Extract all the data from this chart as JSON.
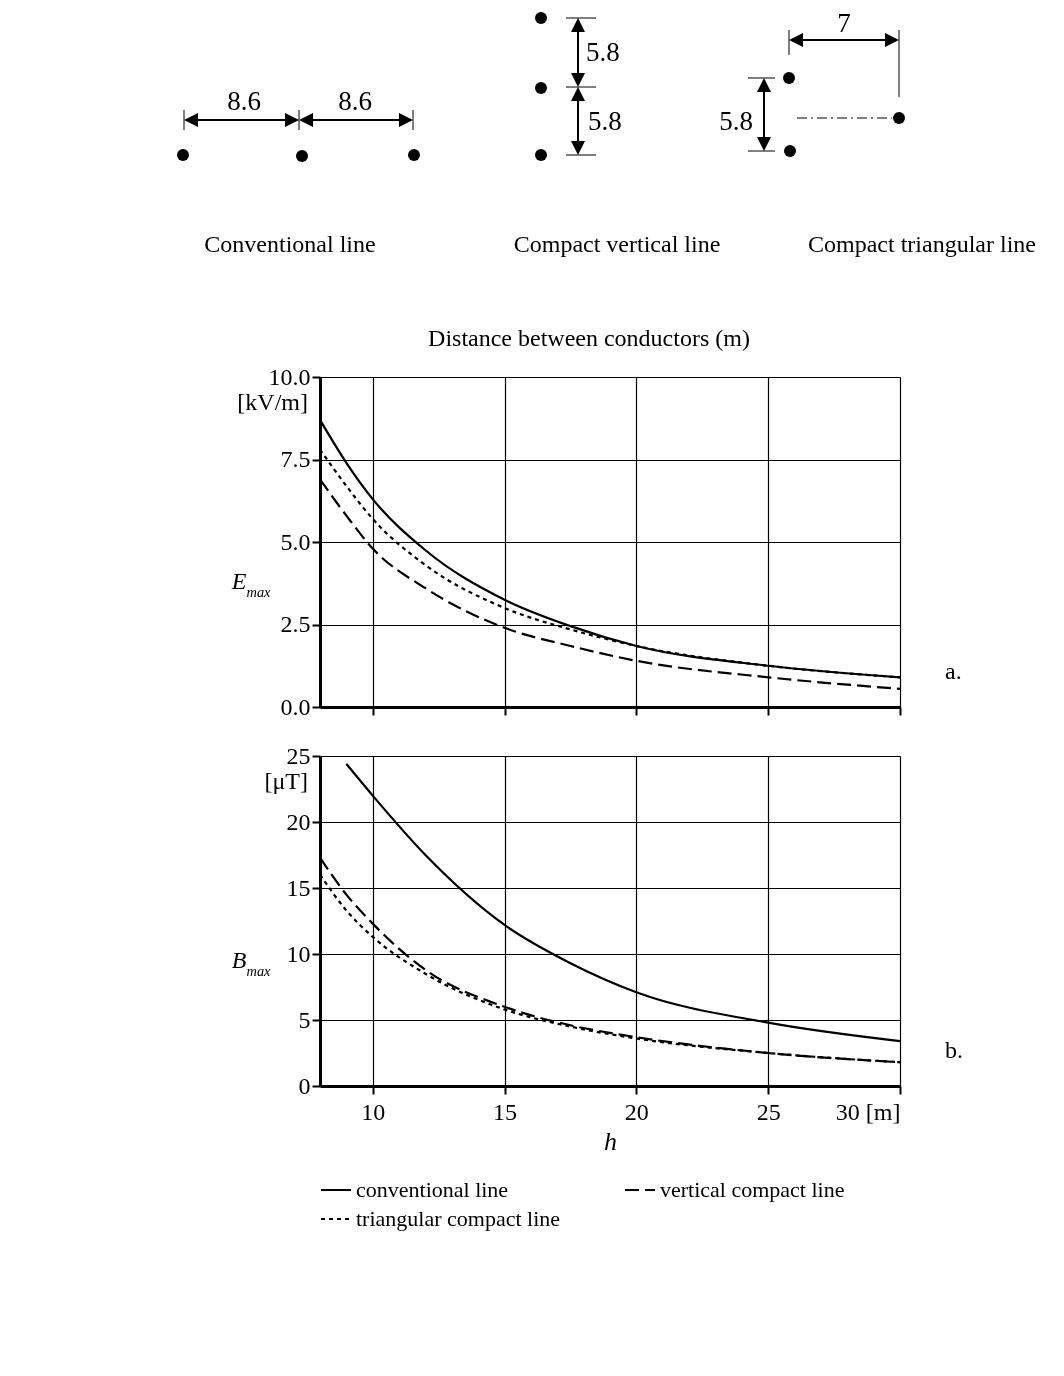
{
  "chart_data": [
    {
      "type": "other",
      "title": "Distance between conductors (m)",
      "annotations": [
        "8.6",
        "8.6",
        "5.8",
        "5.8",
        "7",
        "5.8",
        "Conventional line",
        "Compact vertical line",
        "Compact triangular line"
      ]
    },
    {
      "type": "line",
      "ylabel": "E$_{max}$",
      "x": [
        8,
        9,
        10,
        12,
        15,
        17.5,
        20,
        25,
        30
      ],
      "xlim": [
        8,
        30
      ],
      "xticks": [
        10,
        15,
        20,
        25,
        30
      ],
      "ylim": [
        0,
        10
      ],
      "yticks": [
        {
          "value": 0,
          "label": "0.0"
        },
        {
          "value": 2.5,
          "label": "2.5"
        },
        {
          "value": 5,
          "label": "5.0"
        },
        {
          "value": 7.5,
          "label": "7.5"
        },
        {
          "value": 10,
          "label": "10.0"
        }
      ],
      "tick_labels": "y",
      "grid": true,
      "annotations": [
        "[kV/m]",
        "a."
      ],
      "series": [
        {
          "color": "#000000",
          "line_style": "solid",
          "values": [
            8.7,
            7.4,
            6.3,
            4.75,
            3.25,
            2.45,
            1.85,
            1.25,
            0.9
          ]
        },
        {
          "color": "#000000",
          "line_style": "dashed",
          "values": [
            6.9,
            5.8,
            4.8,
            3.6,
            2.4,
            1.85,
            1.4,
            0.9,
            0.55
          ]
        },
        {
          "color": "#000000",
          "line_style": "dotted",
          "values": [
            7.8,
            6.7,
            5.7,
            4.3,
            3.0,
            2.35,
            1.85,
            1.25,
            0.9
          ]
        }
      ]
    },
    {
      "type": "line",
      "ylabel": "B$_{max}$",
      "xlabel": "h",
      "x": [
        8,
        9,
        10,
        12,
        15,
        17.5,
        20,
        25,
        30
      ],
      "xlim": [
        8,
        30
      ],
      "xticks": [
        10,
        15,
        20,
        25,
        {
          "value": 30,
          "label": "30 [m]"
        }
      ],
      "ylim": [
        0,
        25
      ],
      "yticks": [
        0,
        5,
        10,
        15,
        20,
        25
      ],
      "grid": true,
      "legend": "bottom",
      "annotations": [
        "[μT]",
        "b."
      ],
      "series": [
        {
          "name": "conventional line",
          "color": "#000000",
          "line_style": "solid",
          "values": [
            null,
            24.4,
            22,
            17.5,
            12.2,
            9.3,
            7.1,
            4.8,
            3.4
          ]
        },
        {
          "name": "vertical compact line",
          "color": "#000000",
          "line_style": "dashed",
          "values": [
            17.3,
            14.5,
            12.3,
            8.8,
            6.0,
            4.6,
            3.7,
            2.5,
            1.8
          ]
        },
        {
          "name": "triangular compact line",
          "color": "#000000",
          "line_style": "dotted",
          "values": [
            16,
            13.3,
            11.3,
            8.5,
            5.8,
            4.5,
            3.6,
            2.5,
            1.8
          ]
        }
      ]
    }
  ]
}
